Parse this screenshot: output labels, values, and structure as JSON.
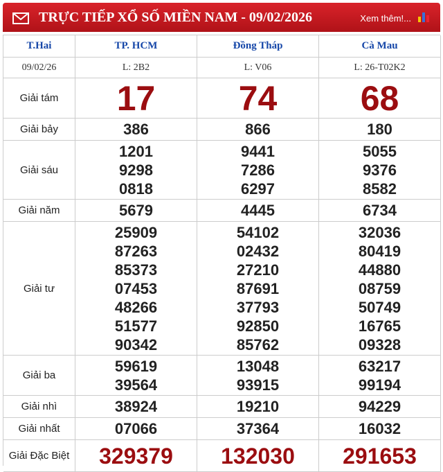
{
  "header": {
    "title": "TRỰC TIẾP XỔ SỐ MIỀN NAM - 09/02/2026",
    "link": "Xem thêm!..."
  },
  "table": {
    "columns": [
      "T.Hai",
      "TP. HCM",
      "Đồng Tháp",
      "Cà Mau"
    ],
    "date_row": [
      "09/02/26",
      "L: 2B2",
      "L: V06",
      "L: 26-T02K2"
    ],
    "prizes": [
      {
        "name": "Giải tám",
        "results": [
          [
            "17"
          ],
          [
            "74"
          ],
          [
            "68"
          ]
        ]
      },
      {
        "name": "Giải bảy",
        "results": [
          [
            "386"
          ],
          [
            "866"
          ],
          [
            "180"
          ]
        ]
      },
      {
        "name": "Giải sáu",
        "results": [
          [
            "1201",
            "9298",
            "0818"
          ],
          [
            "9441",
            "7286",
            "6297"
          ],
          [
            "5055",
            "9376",
            "8582"
          ]
        ]
      },
      {
        "name": "Giải năm",
        "results": [
          [
            "5679"
          ],
          [
            "4445"
          ],
          [
            "6734"
          ]
        ]
      },
      {
        "name": "Giải tư",
        "results": [
          [
            "25909",
            "87263",
            "85373",
            "07453",
            "48266",
            "51577",
            "90342"
          ],
          [
            "54102",
            "02432",
            "27210",
            "87691",
            "37793",
            "92850",
            "85762"
          ],
          [
            "32036",
            "80419",
            "44880",
            "08759",
            "50749",
            "16765",
            "09328"
          ]
        ]
      },
      {
        "name": "Giải ba",
        "results": [
          [
            "59619",
            "39564"
          ],
          [
            "13048",
            "93915"
          ],
          [
            "63217",
            "99194"
          ]
        ]
      },
      {
        "name": "Giải nhì",
        "results": [
          [
            "38924"
          ],
          [
            "19210"
          ],
          [
            "94229"
          ]
        ]
      },
      {
        "name": "Giải nhất",
        "results": [
          [
            "07066"
          ],
          [
            "37364"
          ],
          [
            "16032"
          ]
        ]
      },
      {
        "name": "Giải Đặc Biệt",
        "results": [
          [
            "329379"
          ],
          [
            "132030"
          ],
          [
            "291653"
          ]
        ]
      }
    ]
  }
}
